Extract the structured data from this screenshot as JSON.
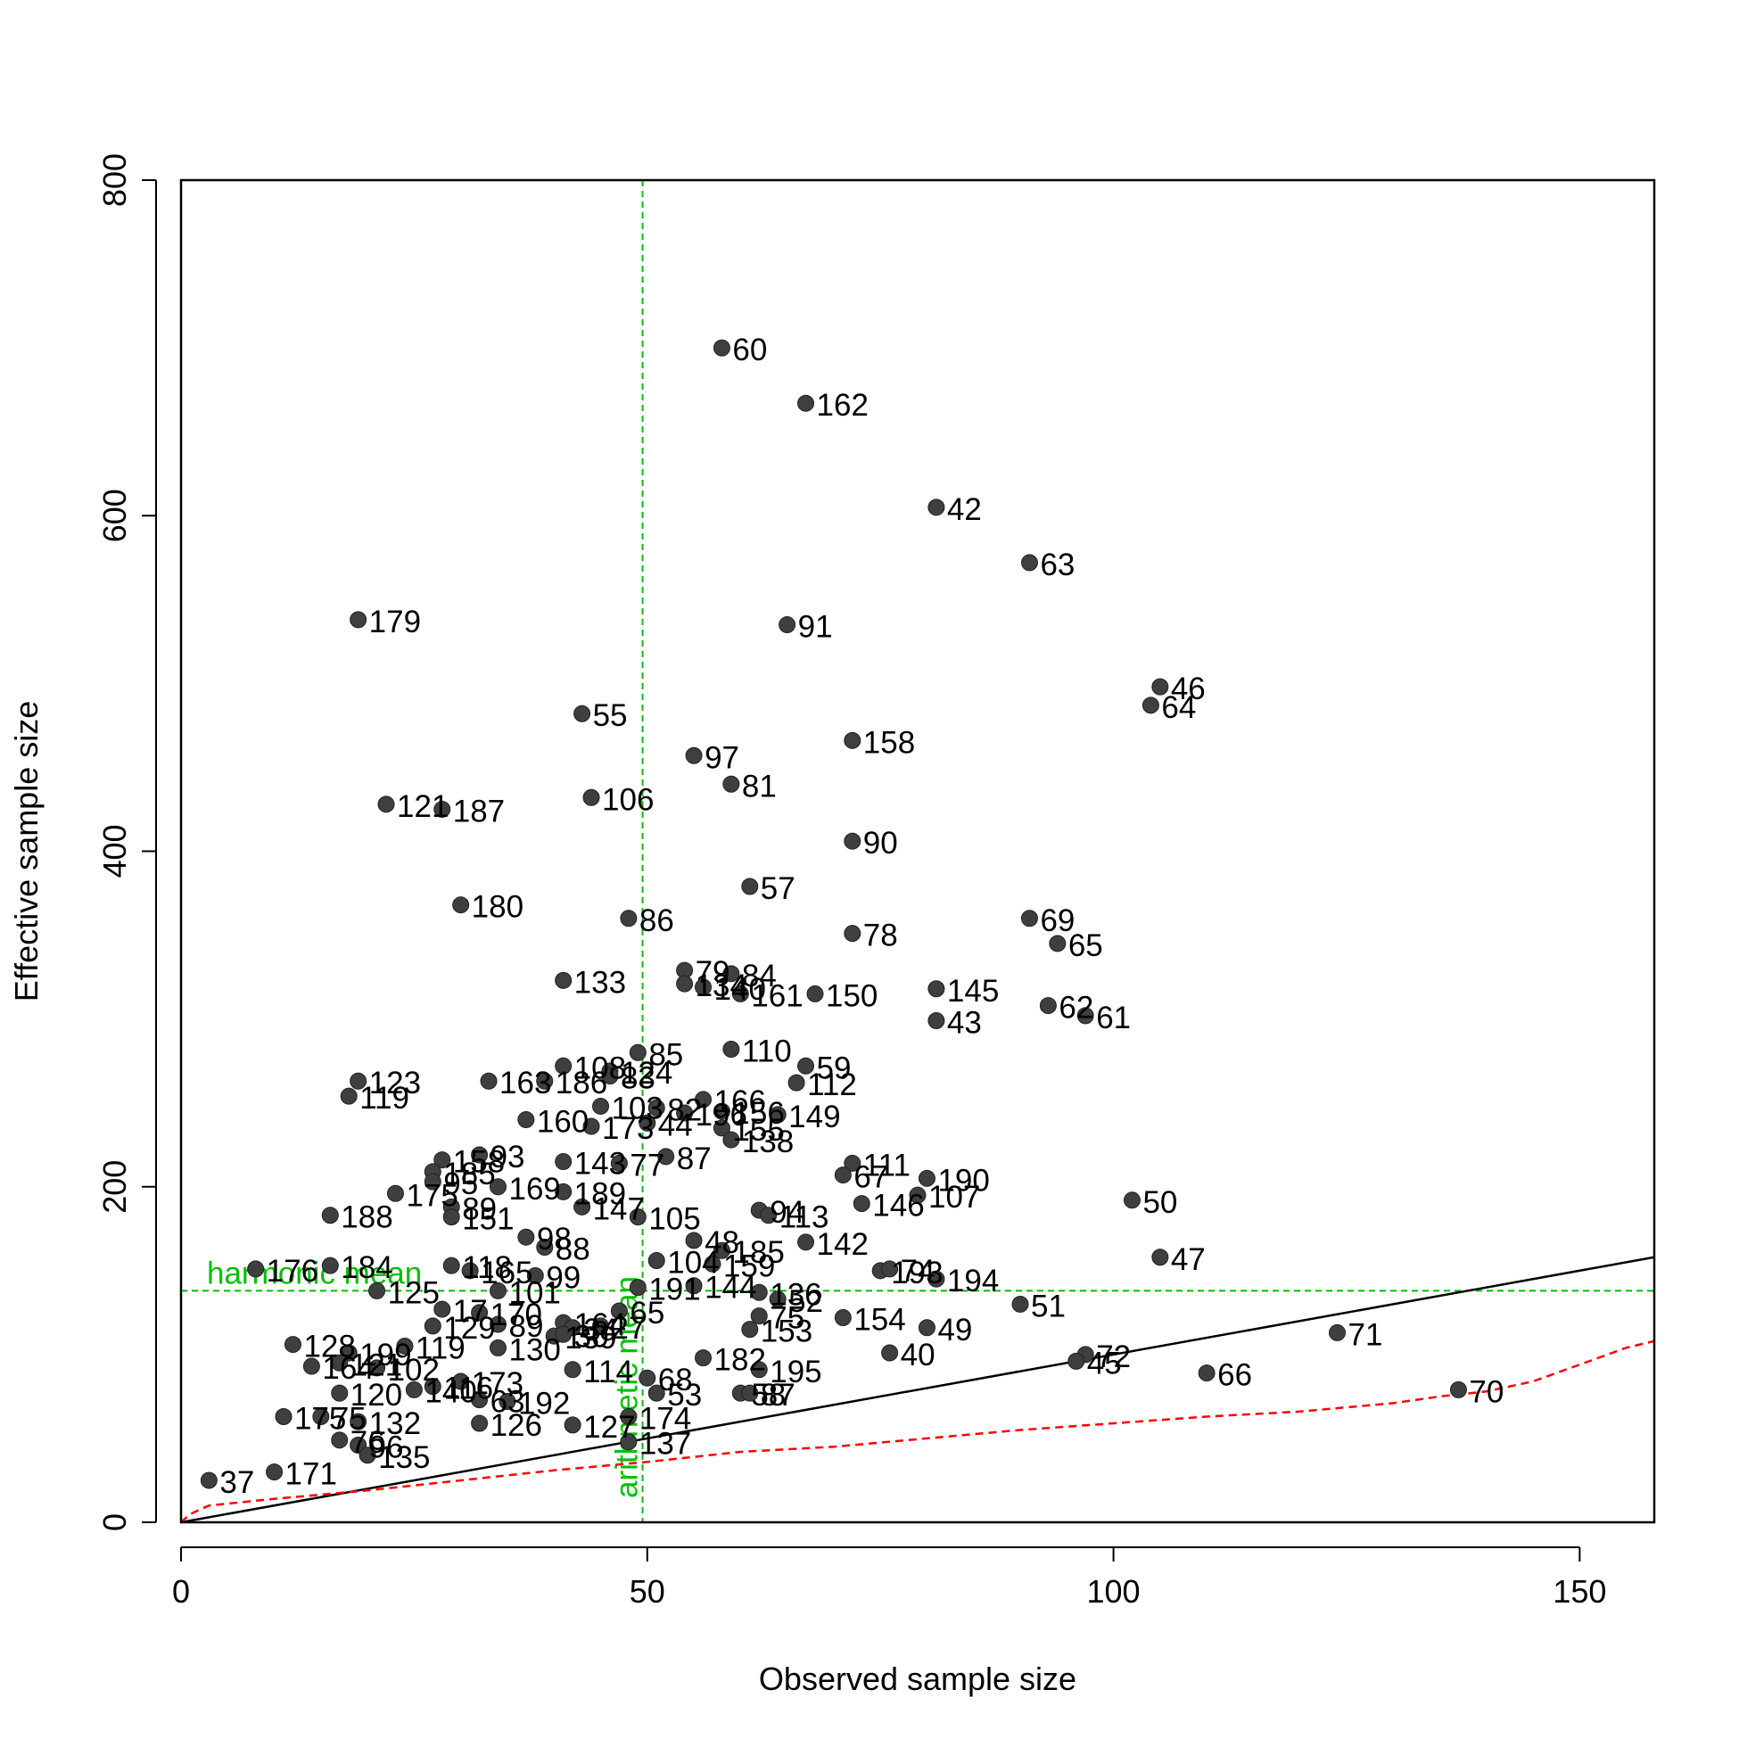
{
  "chart_data": {
    "type": "scatter",
    "xlabel": "Observed sample size",
    "ylabel": "Effective sample size",
    "xlim": [
      0,
      158
    ],
    "ylim": [
      0,
      800
    ],
    "x_ticks": [
      "0",
      "50",
      "100",
      "150"
    ],
    "y_ticks": [
      "0",
      "200",
      "400",
      "600",
      "800"
    ],
    "grid": false,
    "colors": {
      "points": "#3f3f3f",
      "reference_lines": "#00c000",
      "quantile_line": "#ff0000",
      "identity_line": "#000000"
    },
    "reference_lines": {
      "harmonic_mean": {
        "label": "harmonic mean",
        "y": 138
      },
      "arithmetic_mean": {
        "label": "arithmetic mean",
        "x": 49.5
      }
    },
    "identity_line": {
      "from": [
        0,
        0
      ],
      "to": [
        158,
        158
      ]
    },
    "lower_quantile_curve": [
      [
        0,
        0
      ],
      [
        1,
        5
      ],
      [
        3,
        10
      ],
      [
        10,
        14
      ],
      [
        20,
        19
      ],
      [
        30,
        25
      ],
      [
        40,
        31
      ],
      [
        50,
        36
      ],
      [
        60,
        42
      ],
      [
        70,
        45
      ],
      [
        80,
        50
      ],
      [
        90,
        55
      ],
      [
        100,
        59
      ],
      [
        110,
        63
      ],
      [
        120,
        66
      ],
      [
        130,
        71
      ],
      [
        135,
        75
      ],
      [
        140,
        78
      ],
      [
        145,
        84
      ],
      [
        150,
        94
      ],
      [
        155,
        104
      ],
      [
        158,
        108
      ]
    ],
    "points": [
      {
        "id": "60",
        "x": 58,
        "y": 700
      },
      {
        "id": "162",
        "x": 67,
        "y": 667
      },
      {
        "id": "42",
        "x": 81,
        "y": 605
      },
      {
        "id": "63",
        "x": 91,
        "y": 572
      },
      {
        "id": "179",
        "x": 19,
        "y": 538
      },
      {
        "id": "91",
        "x": 65,
        "y": 535
      },
      {
        "id": "46",
        "x": 105,
        "y": 498
      },
      {
        "id": "64",
        "x": 104,
        "y": 487
      },
      {
        "id": "55",
        "x": 43,
        "y": 482
      },
      {
        "id": "158",
        "x": 72,
        "y": 466
      },
      {
        "id": "97",
        "x": 55,
        "y": 457
      },
      {
        "id": "81",
        "x": 59,
        "y": 440
      },
      {
        "id": "106",
        "x": 44,
        "y": 432
      },
      {
        "id": "121",
        "x": 22,
        "y": 428
      },
      {
        "id": "187",
        "x": 28,
        "y": 425
      },
      {
        "id": "90",
        "x": 72,
        "y": 406
      },
      {
        "id": "57",
        "x": 61,
        "y": 379
      },
      {
        "id": "180",
        "x": 30,
        "y": 368
      },
      {
        "id": "86",
        "x": 48,
        "y": 360
      },
      {
        "id": "69",
        "x": 91,
        "y": 360
      },
      {
        "id": "78",
        "x": 72,
        "y": 351
      },
      {
        "id": "65",
        "x": 94,
        "y": 345
      },
      {
        "id": "79",
        "x": 54,
        "y": 329
      },
      {
        "id": "84",
        "x": 59,
        "y": 327
      },
      {
        "id": "133",
        "x": 41,
        "y": 323
      },
      {
        "id": "134",
        "x": 54,
        "y": 321
      },
      {
        "id": "140",
        "x": 56,
        "y": 319
      },
      {
        "id": "145",
        "x": 81,
        "y": 318
      },
      {
        "id": "161",
        "x": 60,
        "y": 315
      },
      {
        "id": "150",
        "x": 68,
        "y": 315
      },
      {
        "id": "62",
        "x": 93,
        "y": 308
      },
      {
        "id": "43",
        "x": 81,
        "y": 299
      },
      {
        "id": "61",
        "x": 97,
        "y": 302
      },
      {
        "id": "85",
        "x": 49,
        "y": 280
      },
      {
        "id": "110",
        "x": 59,
        "y": 282
      },
      {
        "id": "108",
        "x": 41,
        "y": 272
      },
      {
        "id": "59",
        "x": 67,
        "y": 272
      },
      {
        "id": "124",
        "x": 46,
        "y": 269
      },
      {
        "id": "83",
        "x": 46,
        "y": 266
      },
      {
        "id": "123",
        "x": 19,
        "y": 263
      },
      {
        "id": "163",
        "x": 33,
        "y": 263
      },
      {
        "id": "186",
        "x": 39,
        "y": 263
      },
      {
        "id": "112",
        "x": 66,
        "y": 262
      },
      {
        "id": "119",
        "x": 18,
        "y": 254
      },
      {
        "id": "166",
        "x": 56,
        "y": 252
      },
      {
        "id": "103",
        "x": 45,
        "y": 248
      },
      {
        "id": "82",
        "x": 51,
        "y": 247
      },
      {
        "id": "156",
        "x": 58,
        "y": 245
      },
      {
        "id": "196",
        "x": 54,
        "y": 244
      },
      {
        "id": "149",
        "x": 64,
        "y": 243
      },
      {
        "id": "160",
        "x": 37,
        "y": 240
      },
      {
        "id": "44",
        "x": 50,
        "y": 238
      },
      {
        "id": "173",
        "x": 44,
        "y": 236
      },
      {
        "id": "155",
        "x": 58,
        "y": 235
      },
      {
        "id": "138",
        "x": 59,
        "y": 228
      },
      {
        "id": "87",
        "x": 52,
        "y": 218
      },
      {
        "id": "93",
        "x": 32,
        "y": 219
      },
      {
        "id": "158b",
        "label": "158",
        "x": 28,
        "y": 216
      },
      {
        "id": "77",
        "x": 47,
        "y": 214
      },
      {
        "id": "143",
        "x": 41,
        "y": 215
      },
      {
        "id": "111",
        "x": 72,
        "y": 214
      },
      {
        "id": "185",
        "x": 27,
        "y": 209
      },
      {
        "id": "67",
        "x": 71,
        "y": 207
      },
      {
        "id": "190",
        "x": 80,
        "y": 205
      },
      {
        "id": "95",
        "x": 27,
        "y": 203
      },
      {
        "id": "169",
        "x": 34,
        "y": 200
      },
      {
        "id": "189",
        "x": 41,
        "y": 197
      },
      {
        "id": "175",
        "x": 23,
        "y": 196
      },
      {
        "id": "107",
        "x": 79,
        "y": 195
      },
      {
        "id": "50",
        "x": 102,
        "y": 192
      },
      {
        "id": "146",
        "x": 73,
        "y": 190
      },
      {
        "id": "89",
        "x": 29,
        "y": 188
      },
      {
        "id": "147",
        "x": 43,
        "y": 188
      },
      {
        "id": "94",
        "x": 62,
        "y": 186
      },
      {
        "id": "188",
        "x": 16,
        "y": 183
      },
      {
        "id": "151",
        "x": 29,
        "y": 182
      },
      {
        "id": "105",
        "x": 49,
        "y": 182
      },
      {
        "id": "113",
        "x": 63,
        "y": 183
      },
      {
        "id": "98",
        "x": 37,
        "y": 170
      },
      {
        "id": "142",
        "x": 67,
        "y": 167
      },
      {
        "id": "48",
        "x": 55,
        "y": 168
      },
      {
        "id": "88",
        "x": 39,
        "y": 164
      },
      {
        "id": "185b",
        "label": "185",
        "x": 58,
        "y": 162
      },
      {
        "id": "47",
        "x": 105,
        "y": 158
      },
      {
        "id": "104",
        "x": 51,
        "y": 156
      },
      {
        "id": "159",
        "x": 57,
        "y": 154
      },
      {
        "id": "184",
        "x": 16,
        "y": 153
      },
      {
        "id": "176",
        "x": 8,
        "y": 151
      },
      {
        "id": "118",
        "x": 29,
        "y": 153
      },
      {
        "id": "165",
        "x": 31,
        "y": 150
      },
      {
        "id": "193",
        "x": 75,
        "y": 150
      },
      {
        "id": "74",
        "x": 76,
        "y": 151
      },
      {
        "id": "99",
        "x": 38,
        "y": 147
      },
      {
        "id": "194",
        "x": 81,
        "y": 145
      },
      {
        "id": "144",
        "x": 55,
        "y": 141
      },
      {
        "id": "191",
        "x": 49,
        "y": 140
      },
      {
        "id": "125",
        "x": 21,
        "y": 138
      },
      {
        "id": "101",
        "x": 34,
        "y": 138
      },
      {
        "id": "136",
        "x": 62,
        "y": 137
      },
      {
        "id": "52",
        "x": 64,
        "y": 133
      },
      {
        "id": "51",
        "x": 90,
        "y": 130
      },
      {
        "id": "17",
        "x": 28,
        "y": 127
      },
      {
        "id": "65b",
        "label": "65",
        "x": 47,
        "y": 126
      },
      {
        "id": "170",
        "x": 32,
        "y": 125
      },
      {
        "id": "75",
        "x": 62,
        "y": 123
      },
      {
        "id": "154",
        "x": 71,
        "y": 122
      },
      {
        "id": "89b",
        "label": "89",
        "x": 34,
        "y": 118
      },
      {
        "id": "129",
        "x": 27,
        "y": 117
      },
      {
        "id": "164",
        "x": 41,
        "y": 119
      },
      {
        "id": "34",
        "x": 42,
        "y": 116
      },
      {
        "id": "27",
        "x": 45,
        "y": 117
      },
      {
        "id": "153",
        "x": 61,
        "y": 115
      },
      {
        "id": "49",
        "x": 80,
        "y": 116
      },
      {
        "id": "71",
        "x": 124,
        "y": 113
      },
      {
        "id": "139",
        "x": 40,
        "y": 111
      },
      {
        "id": "30",
        "x": 41,
        "y": 112
      },
      {
        "id": "130",
        "x": 34,
        "y": 104
      },
      {
        "id": "119b",
        "label": "119",
        "x": 24,
        "y": 105
      },
      {
        "id": "128",
        "x": 12,
        "y": 106
      },
      {
        "id": "199",
        "x": 18,
        "y": 101
      },
      {
        "id": "40",
        "x": 76,
        "y": 101
      },
      {
        "id": "72",
        "x": 97,
        "y": 100
      },
      {
        "id": "45",
        "x": 96,
        "y": 96
      },
      {
        "id": "182",
        "x": 56,
        "y": 98
      },
      {
        "id": "114",
        "x": 42,
        "y": 91
      },
      {
        "id": "195",
        "x": 62,
        "y": 91
      },
      {
        "id": "164b",
        "label": "164",
        "x": 14,
        "y": 93
      },
      {
        "id": "121b",
        "label": "121",
        "x": 17,
        "y": 95
      },
      {
        "id": "102",
        "x": 21,
        "y": 92
      },
      {
        "id": "66",
        "x": 110,
        "y": 89
      },
      {
        "id": "68",
        "x": 50,
        "y": 86
      },
      {
        "id": "173b",
        "label": "173",
        "x": 30,
        "y": 84
      },
      {
        "id": "116",
        "x": 27,
        "y": 81
      },
      {
        "id": "120",
        "x": 17,
        "y": 77
      },
      {
        "id": "140b",
        "label": "140",
        "x": 25,
        "y": 79
      },
      {
        "id": "63b",
        "label": "63",
        "x": 32,
        "y": 73
      },
      {
        "id": "53",
        "x": 51,
        "y": 77
      },
      {
        "id": "58",
        "x": 60,
        "y": 77
      },
      {
        "id": "87b",
        "label": "87",
        "x": 61,
        "y": 77
      },
      {
        "id": "192",
        "x": 35,
        "y": 72
      },
      {
        "id": "70",
        "x": 137,
        "y": 79
      },
      {
        "id": "175b",
        "label": "175",
        "x": 11,
        "y": 63
      },
      {
        "id": "75b",
        "label": "75",
        "x": 15,
        "y": 63
      },
      {
        "id": "132",
        "x": 19,
        "y": 60
      },
      {
        "id": "126",
        "x": 32,
        "y": 59
      },
      {
        "id": "127",
        "x": 42,
        "y": 58
      },
      {
        "id": "174",
        "x": 48,
        "y": 63
      },
      {
        "id": "137",
        "x": 48,
        "y": 48
      },
      {
        "id": "76",
        "x": 17,
        "y": 49
      },
      {
        "id": "96",
        "x": 19,
        "y": 46
      },
      {
        "id": "135",
        "x": 20,
        "y": 40
      },
      {
        "id": "171",
        "x": 10,
        "y": 30
      },
      {
        "id": "37",
        "x": 3,
        "y": 25
      }
    ]
  }
}
